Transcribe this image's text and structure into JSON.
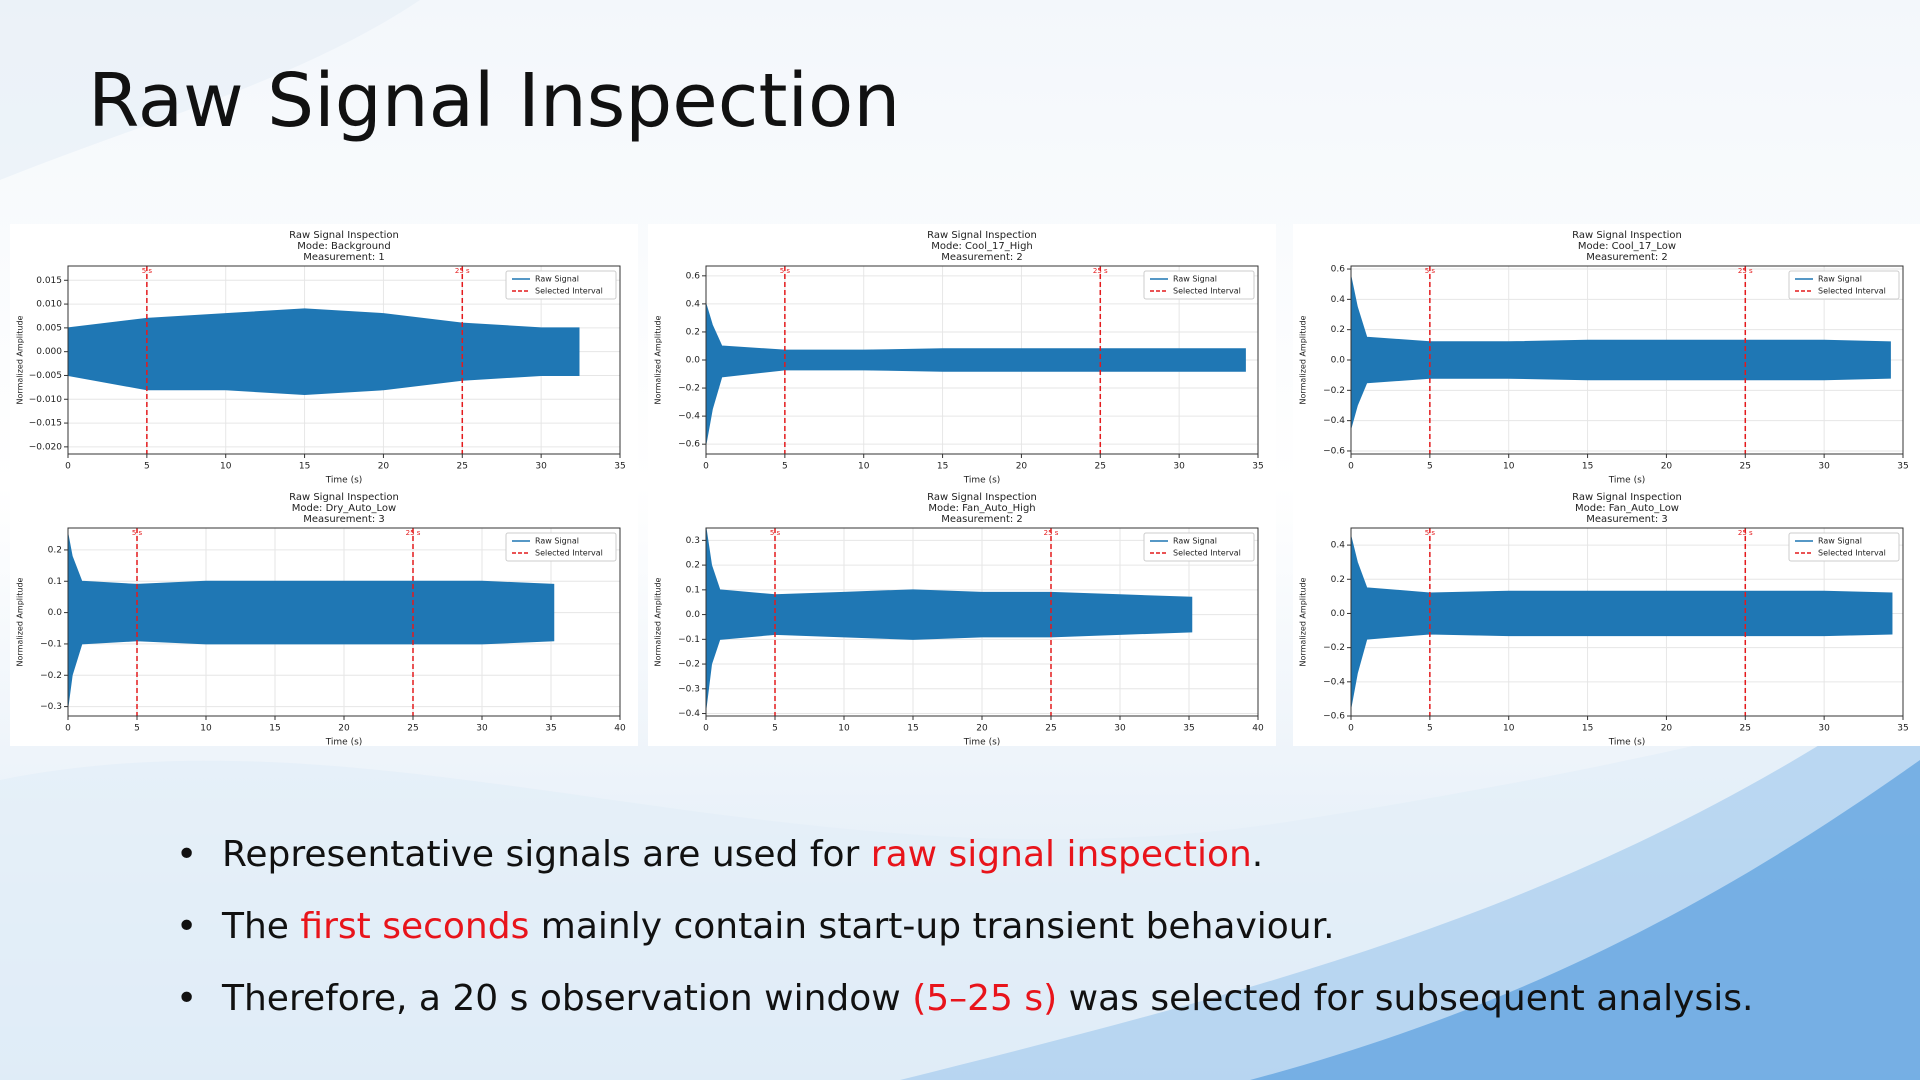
{
  "slide": {
    "title": "Raw Signal Inspection",
    "bullets": [
      {
        "before": "Representative signals are used for ",
        "highlight": "raw signal inspection",
        "after": "."
      },
      {
        "before": "The ",
        "highlight": "first seconds",
        "after": " mainly contain start-up transient behaviour."
      },
      {
        "before": "Therefore, a 20 s observation window ",
        "highlight": "(5–25 s)",
        "after": " was selected for subsequent analysis."
      }
    ]
  },
  "chart_data": [
    {
      "type": "area",
      "title": "Raw Signal Inspection",
      "mode": "Mode: Background",
      "measurement": "Measurement: 1",
      "xlabel": "Time (s)",
      "ylabel": "Normalized Amplitude",
      "grid": true,
      "legend": "upper right",
      "xlim": [
        0,
        35
      ],
      "xticks": [
        0,
        5,
        10,
        15,
        20,
        25,
        30,
        35
      ],
      "ylim": [
        -0.0215,
        0.018
      ],
      "yticks": [
        {
          "value": -0.02,
          "label": "−0.020"
        },
        {
          "value": -0.015,
          "label": "−0.015"
        },
        {
          "value": -0.01,
          "label": "−0.010"
        },
        {
          "value": -0.005,
          "label": "−0.005"
        },
        {
          "value": 0,
          "label": "0.000"
        },
        0.005,
        {
          "value": 0.01,
          "label": "0.010"
        },
        0.015
      ],
      "series": [
        {
          "name": "Raw Signal",
          "color": "#1f77b4",
          "x": [
            0,
            5,
            10,
            15,
            20,
            25,
            30,
            32.4
          ],
          "upper": [
            0.005,
            0.007,
            0.008,
            0.009,
            0.008,
            0.006,
            0.005,
            0.005
          ],
          "lower": [
            -0.005,
            -0.008,
            -0.008,
            -0.009,
            -0.008,
            -0.006,
            -0.005,
            -0.005
          ]
        }
      ],
      "interval": {
        "name": "Selected Interval",
        "color": "#e41a1c",
        "values": [
          5,
          25
        ],
        "value_labels": [
          "5 s",
          "25 s"
        ]
      }
    },
    {
      "type": "area",
      "title": "Raw Signal Inspection",
      "mode": "Mode: Cool_17_High",
      "measurement": "Measurement: 2",
      "xlabel": "Time (s)",
      "ylabel": "Normalized Amplitude",
      "grid": true,
      "legend": "upper right",
      "xlim": [
        0,
        35
      ],
      "xticks": [
        0,
        5,
        10,
        15,
        20,
        25,
        30,
        35
      ],
      "ylim": [
        -0.67,
        0.67
      ],
      "yticks": [
        {
          "value": -0.6,
          "label": "−0.6"
        },
        {
          "value": -0.4,
          "label": "−0.4"
        },
        {
          "value": -0.2,
          "label": "−0.2"
        },
        {
          "value": 0,
          "label": "0.0"
        },
        0.2,
        0.4,
        0.6
      ],
      "series": [
        {
          "name": "Raw Signal",
          "color": "#1f77b4",
          "x": [
            0,
            0.4,
            1,
            5,
            10,
            15,
            20,
            25,
            30,
            34.2
          ],
          "upper": [
            0.4,
            0.25,
            0.1,
            0.07,
            0.07,
            0.08,
            0.08,
            0.08,
            0.08,
            0.08
          ],
          "lower": [
            -0.6,
            -0.35,
            -0.12,
            -0.07,
            -0.07,
            -0.08,
            -0.08,
            -0.08,
            -0.08,
            -0.08
          ]
        }
      ],
      "interval": {
        "name": "Selected Interval",
        "color": "#e41a1c",
        "values": [
          5,
          25
        ],
        "value_labels": [
          "5 s",
          "25 s"
        ]
      }
    },
    {
      "type": "area",
      "title": "Raw Signal Inspection",
      "mode": "Mode: Cool_17_Low",
      "measurement": "Measurement: 2",
      "xlabel": "Time (s)",
      "ylabel": "Normalized Amplitude",
      "grid": true,
      "legend": "upper right",
      "xlim": [
        0,
        35
      ],
      "xticks": [
        0,
        5,
        10,
        15,
        20,
        25,
        30,
        35
      ],
      "ylim": [
        -0.62,
        0.62
      ],
      "yticks": [
        {
          "value": -0.6,
          "label": "−0.6"
        },
        {
          "value": -0.4,
          "label": "−0.4"
        },
        {
          "value": -0.2,
          "label": "−0.2"
        },
        {
          "value": 0,
          "label": "0.0"
        },
        0.2,
        0.4,
        0.6
      ],
      "series": [
        {
          "name": "Raw Signal",
          "color": "#1f77b4",
          "x": [
            0,
            0.4,
            1,
            5,
            10,
            15,
            20,
            25,
            30,
            34.2
          ],
          "upper": [
            0.55,
            0.35,
            0.15,
            0.12,
            0.12,
            0.13,
            0.13,
            0.13,
            0.13,
            0.12
          ],
          "lower": [
            -0.45,
            -0.3,
            -0.15,
            -0.12,
            -0.12,
            -0.13,
            -0.13,
            -0.13,
            -0.13,
            -0.12
          ]
        }
      ],
      "interval": {
        "name": "Selected Interval",
        "color": "#e41a1c",
        "values": [
          5,
          25
        ],
        "value_labels": [
          "5 s",
          "25 s"
        ]
      }
    },
    {
      "type": "area",
      "title": "Raw Signal Inspection",
      "mode": "Mode: Dry_Auto_Low",
      "measurement": "Measurement: 3",
      "xlabel": "Time (s)",
      "ylabel": "Normalized Amplitude",
      "grid": true,
      "legend": "upper right",
      "xlim": [
        0,
        40
      ],
      "xticks": [
        0,
        5,
        10,
        15,
        20,
        25,
        30,
        35,
        40
      ],
      "ylim": [
        -0.33,
        0.27
      ],
      "yticks": [
        {
          "value": -0.3,
          "label": "−0.3"
        },
        {
          "value": -0.2,
          "label": "−0.2"
        },
        {
          "value": -0.1,
          "label": "−0.1"
        },
        {
          "value": 0,
          "label": "0.0"
        },
        0.1,
        0.2
      ],
      "series": [
        {
          "name": "Raw Signal",
          "color": "#1f77b4",
          "x": [
            0,
            0.3,
            1,
            5,
            10,
            15,
            20,
            25,
            30,
            35.2
          ],
          "upper": [
            0.25,
            0.18,
            0.1,
            0.09,
            0.1,
            0.1,
            0.1,
            0.1,
            0.1,
            0.09
          ],
          "lower": [
            -0.3,
            -0.2,
            -0.1,
            -0.09,
            -0.1,
            -0.1,
            -0.1,
            -0.1,
            -0.1,
            -0.09
          ]
        }
      ],
      "interval": {
        "name": "Selected Interval",
        "color": "#e41a1c",
        "values": [
          5,
          25
        ],
        "value_labels": [
          "5 s",
          "25 s"
        ]
      }
    },
    {
      "type": "area",
      "title": "Raw Signal Inspection",
      "mode": "Mode: Fan_Auto_High",
      "measurement": "Measurement: 2",
      "xlabel": "Time (s)",
      "ylabel": "Normalized Amplitude",
      "grid": true,
      "legend": "upper right",
      "xlim": [
        0,
        40
      ],
      "xticks": [
        0,
        5,
        10,
        15,
        20,
        25,
        30,
        35,
        40
      ],
      "ylim": [
        -0.41,
        0.35
      ],
      "yticks": [
        {
          "value": -0.4,
          "label": "−0.4"
        },
        {
          "value": -0.3,
          "label": "−0.3"
        },
        {
          "value": -0.2,
          "label": "−0.2"
        },
        {
          "value": -0.1,
          "label": "−0.1"
        },
        {
          "value": 0,
          "label": "0.0"
        },
        0.1,
        0.2,
        0.3
      ],
      "series": [
        {
          "name": "Raw Signal",
          "color": "#1f77b4",
          "x": [
            0,
            0.4,
            1,
            5,
            10,
            15,
            20,
            25,
            30,
            35.2
          ],
          "upper": [
            0.35,
            0.2,
            0.1,
            0.08,
            0.09,
            0.1,
            0.09,
            0.09,
            0.08,
            0.07
          ],
          "lower": [
            -0.38,
            -0.2,
            -0.1,
            -0.08,
            -0.09,
            -0.1,
            -0.09,
            -0.09,
            -0.08,
            -0.07
          ]
        }
      ],
      "interval": {
        "name": "Selected Interval",
        "color": "#e41a1c",
        "values": [
          5,
          25
        ],
        "value_labels": [
          "5 s",
          "25 s"
        ]
      }
    },
    {
      "type": "area",
      "title": "Raw Signal Inspection",
      "mode": "Mode: Fan_Auto_Low",
      "measurement": "Measurement: 3",
      "xlabel": "Time (s)",
      "ylabel": "Normalized Amplitude",
      "grid": true,
      "legend": "upper right",
      "xlim": [
        0,
        35
      ],
      "xticks": [
        0,
        5,
        10,
        15,
        20,
        25,
        30,
        35
      ],
      "ylim": [
        -0.6,
        0.5
      ],
      "yticks": [
        {
          "value": -0.6,
          "label": "−0.6"
        },
        {
          "value": -0.4,
          "label": "−0.4"
        },
        {
          "value": -0.2,
          "label": "−0.2"
        },
        {
          "value": 0,
          "label": "0.0"
        },
        0.2,
        0.4
      ],
      "series": [
        {
          "name": "Raw Signal",
          "color": "#1f77b4",
          "x": [
            0,
            0.4,
            1,
            5,
            10,
            15,
            20,
            25,
            30,
            34.3
          ],
          "upper": [
            0.45,
            0.3,
            0.15,
            0.12,
            0.13,
            0.13,
            0.13,
            0.13,
            0.13,
            0.12
          ],
          "lower": [
            -0.55,
            -0.35,
            -0.15,
            -0.12,
            -0.13,
            -0.13,
            -0.13,
            -0.13,
            -0.13,
            -0.12
          ]
        }
      ],
      "interval": {
        "name": "Selected Interval",
        "color": "#e41a1c",
        "values": [
          5,
          25
        ],
        "value_labels": [
          "5 s",
          "25 s"
        ]
      }
    }
  ]
}
